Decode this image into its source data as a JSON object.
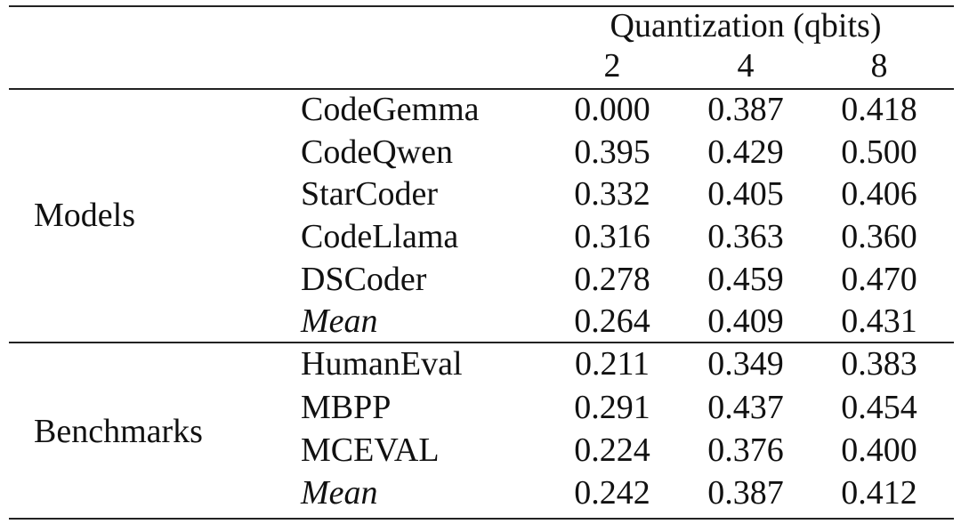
{
  "table": {
    "header": {
      "group_label": "Quantization (qbits)",
      "columns": [
        "2",
        "4",
        "8"
      ]
    },
    "sections": [
      {
        "label": "Models",
        "rows": [
          {
            "name": "CodeGemma",
            "values": [
              "0.000",
              "0.387",
              "0.418"
            ]
          },
          {
            "name": "CodeQwen",
            "values": [
              "0.395",
              "0.429",
              "0.500"
            ]
          },
          {
            "name": "StarCoder",
            "values": [
              "0.332",
              "0.405",
              "0.406"
            ]
          },
          {
            "name": "CodeLlama",
            "values": [
              "0.316",
              "0.363",
              "0.360"
            ]
          },
          {
            "name": "DSCoder",
            "values": [
              "0.278",
              "0.459",
              "0.470"
            ]
          },
          {
            "name": "Mean",
            "values": [
              "0.264",
              "0.409",
              "0.431"
            ],
            "italic": true
          }
        ]
      },
      {
        "label": "Benchmarks",
        "rows": [
          {
            "name": "HumanEval",
            "values": [
              "0.211",
              "0.349",
              "0.383"
            ]
          },
          {
            "name": "MBPP",
            "values": [
              "0.291",
              "0.437",
              "0.454"
            ]
          },
          {
            "name": "MCEVAL",
            "values": [
              "0.224",
              "0.376",
              "0.400"
            ]
          },
          {
            "name": "Mean",
            "values": [
              "0.242",
              "0.387",
              "0.412"
            ],
            "italic": true
          }
        ]
      }
    ]
  }
}
